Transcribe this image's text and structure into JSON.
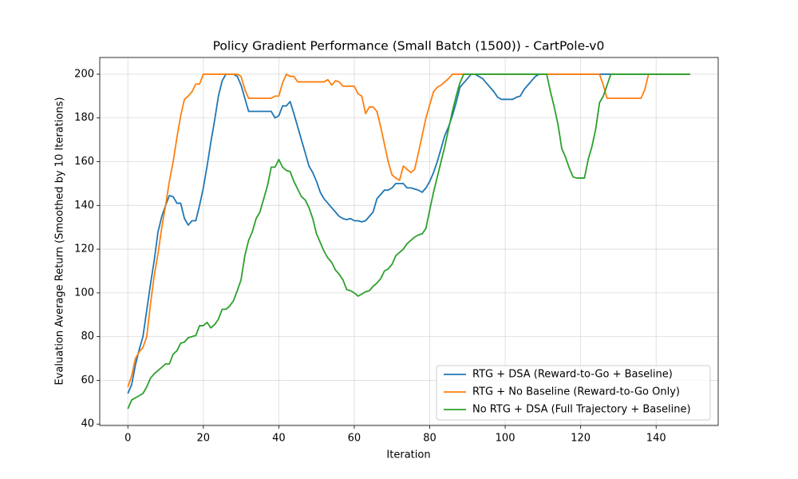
{
  "chart_data": {
    "type": "line",
    "title": "Policy Gradient Performance (Small Batch (1500)) - CartPole-v0",
    "xlabel": "Iteration",
    "ylabel": "Evaluation Average Return (Smoothed by 10 Iterations)",
    "x": [
      0,
      1,
      2,
      3,
      4,
      5,
      6,
      7,
      8,
      9,
      10,
      11,
      12,
      13,
      14,
      15,
      16,
      17,
      18,
      19,
      20,
      21,
      22,
      23,
      24,
      25,
      26,
      27,
      28,
      29,
      30,
      31,
      32,
      33,
      34,
      35,
      36,
      37,
      38,
      39,
      40,
      41,
      42,
      43,
      44,
      45,
      46,
      47,
      48,
      49,
      50,
      51,
      52,
      53,
      54,
      55,
      56,
      57,
      58,
      59,
      60,
      61,
      62,
      63,
      64,
      65,
      66,
      67,
      68,
      69,
      70,
      71,
      72,
      73,
      74,
      75,
      76,
      77,
      78,
      79,
      80,
      81,
      82,
      83,
      84,
      85,
      86,
      87,
      88,
      89,
      90,
      91,
      92,
      93,
      94,
      95,
      96,
      97,
      98,
      99,
      100,
      101,
      102,
      103,
      104,
      105,
      106,
      107,
      108,
      109,
      110,
      111,
      112,
      113,
      114,
      115,
      116,
      117,
      118,
      119,
      120,
      121,
      122,
      123,
      124,
      125,
      126,
      127,
      128,
      129,
      130,
      131,
      132,
      133,
      134,
      135,
      136,
      137,
      138,
      139,
      140,
      141,
      142,
      143,
      144,
      145,
      146,
      147,
      148,
      149
    ],
    "series": [
      {
        "name": "RTG + DSA (Reward-to-Go + Baseline)",
        "color": "#1f77b4",
        "values": [
          54,
          58,
          67,
          74,
          80,
          92,
          104,
          115,
          128,
          135,
          140,
          144.5,
          144,
          141,
          141,
          134,
          131,
          133,
          133,
          140,
          148,
          158,
          169,
          179,
          190,
          197,
          200,
          200,
          200,
          199,
          195,
          189,
          183,
          183,
          183,
          183,
          183,
          183,
          183,
          180,
          181,
          185.5,
          185.5,
          187.5,
          182,
          176,
          170,
          164,
          158,
          155,
          151,
          146,
          143,
          141,
          139,
          137,
          135,
          134,
          133.5,
          134,
          133,
          133,
          132.5,
          133,
          135,
          137,
          143,
          145,
          147,
          147,
          148,
          150,
          150,
          150,
          148,
          148,
          147.5,
          147,
          146,
          148,
          151,
          155,
          160,
          166,
          172,
          176,
          181,
          187,
          194,
          196,
          198,
          200,
          200,
          199,
          198,
          196,
          194,
          192,
          189.5,
          188.5,
          188.5,
          188.5,
          188.5,
          189.5,
          190,
          193,
          195,
          197,
          199,
          200,
          200,
          200,
          200,
          200,
          200,
          200,
          200,
          200,
          200,
          200,
          200,
          200,
          200,
          200,
          200,
          200,
          200,
          200,
          200,
          200,
          200,
          200,
          200,
          200,
          200,
          200,
          200,
          200,
          200,
          200,
          200,
          200,
          200,
          200,
          200,
          200,
          200,
          200,
          200,
          200
        ]
      },
      {
        "name": "RTG + No Baseline (Reward-to-Go Only)",
        "color": "#ff7f0e",
        "values": [
          57,
          62,
          70,
          73,
          75,
          80,
          95,
          108,
          118,
          130,
          140,
          151,
          160,
          171,
          181,
          188.5,
          190,
          192,
          195.5,
          195.5,
          200,
          200,
          200,
          200,
          200,
          200,
          200,
          200,
          200,
          200,
          199,
          193,
          189,
          189,
          189,
          189,
          189,
          189,
          189,
          190,
          190,
          196,
          200,
          199,
          199,
          196.5,
          196.5,
          196.5,
          196.5,
          196.5,
          196.5,
          196.5,
          196.5,
          197.5,
          195,
          197,
          196.5,
          194.5,
          194.5,
          194.5,
          194.5,
          191,
          190,
          182,
          185,
          185,
          183,
          176,
          168,
          160,
          154,
          152.5,
          151.5,
          158,
          156.5,
          155,
          156.5,
          164,
          172,
          180,
          186,
          192,
          194,
          195,
          196.5,
          198,
          200,
          200,
          200,
          200,
          200,
          200,
          200,
          200,
          200,
          200,
          200,
          200,
          200,
          200,
          200,
          200,
          200,
          200,
          200,
          200,
          200,
          200,
          200,
          200,
          200,
          200,
          200,
          200,
          200,
          200,
          200,
          200,
          200,
          200,
          200,
          200,
          200,
          200,
          200,
          200,
          195,
          189,
          189,
          189,
          189,
          189,
          189,
          189,
          189,
          189,
          189,
          193,
          200,
          200,
          200,
          200,
          200,
          200,
          200,
          200,
          200,
          200,
          200,
          200
        ]
      },
      {
        "name": "No RTG + DSA (Full Trajectory + Baseline)",
        "color": "#2ca02c",
        "values": [
          47,
          51,
          52,
          53,
          54,
          57,
          61,
          63,
          64.5,
          66,
          67.5,
          67.5,
          72,
          73.5,
          77,
          77.5,
          79.5,
          80,
          80.5,
          85,
          85,
          86.5,
          84,
          85.5,
          88,
          92.5,
          92.5,
          94,
          96.5,
          101,
          106,
          117,
          124,
          128,
          134,
          137,
          143,
          149,
          157.5,
          157.5,
          161,
          157.5,
          156,
          155.5,
          151,
          147.5,
          144,
          142.5,
          139,
          134,
          127,
          123,
          119,
          116,
          114,
          110.5,
          108.5,
          106,
          101.5,
          101,
          100,
          98.5,
          99.5,
          100.5,
          101,
          103,
          104.5,
          106.5,
          110,
          111,
          113,
          117,
          118.5,
          120,
          122.5,
          124,
          125.5,
          126.5,
          127,
          129.5,
          138,
          146,
          153,
          160,
          167,
          175,
          183,
          190,
          196,
          200,
          200,
          200,
          200,
          200,
          200,
          200,
          200,
          200,
          200,
          200,
          200,
          200,
          200,
          200,
          200,
          200,
          200,
          200,
          200,
          200,
          200,
          200,
          192,
          185,
          177,
          166,
          162,
          157,
          153,
          152.5,
          152.5,
          152.5,
          161,
          167,
          175,
          187,
          190,
          195,
          200,
          200,
          200,
          200,
          200,
          200,
          200,
          200,
          200,
          200,
          200,
          200,
          200,
          200,
          200,
          200,
          200,
          200,
          200,
          200,
          200,
          200
        ]
      }
    ],
    "xlim": [
      -7.45,
      156.45
    ],
    "ylim": [
      39.35,
      207.65
    ],
    "xticks": [
      0,
      20,
      40,
      60,
      80,
      100,
      120,
      140
    ],
    "yticks": [
      40,
      60,
      80,
      100,
      120,
      140,
      160,
      180,
      200
    ],
    "grid": true,
    "legend": "lower right"
  }
}
